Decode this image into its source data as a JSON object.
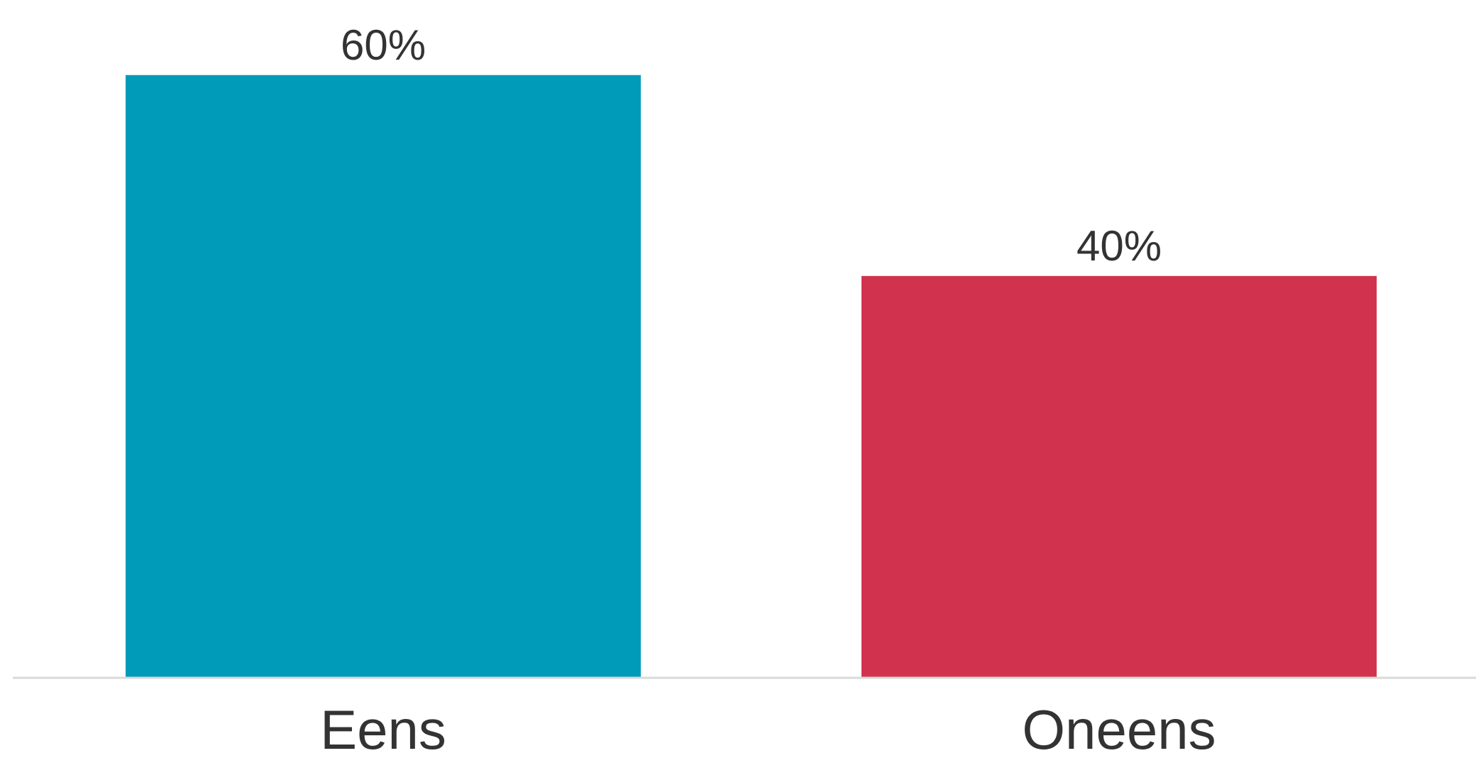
{
  "chart_data": {
    "type": "bar",
    "categories": [
      "Eens",
      "Oneens"
    ],
    "values": [
      60,
      40
    ],
    "value_labels": [
      "60%",
      "40%"
    ],
    "colors": [
      "#009BB9",
      "#D1334F"
    ],
    "axis_color": "#D9D9D9",
    "title": "",
    "xlabel": "",
    "ylabel": "",
    "ylim": [
      0,
      65
    ],
    "grid": false,
    "legend": "none"
  }
}
